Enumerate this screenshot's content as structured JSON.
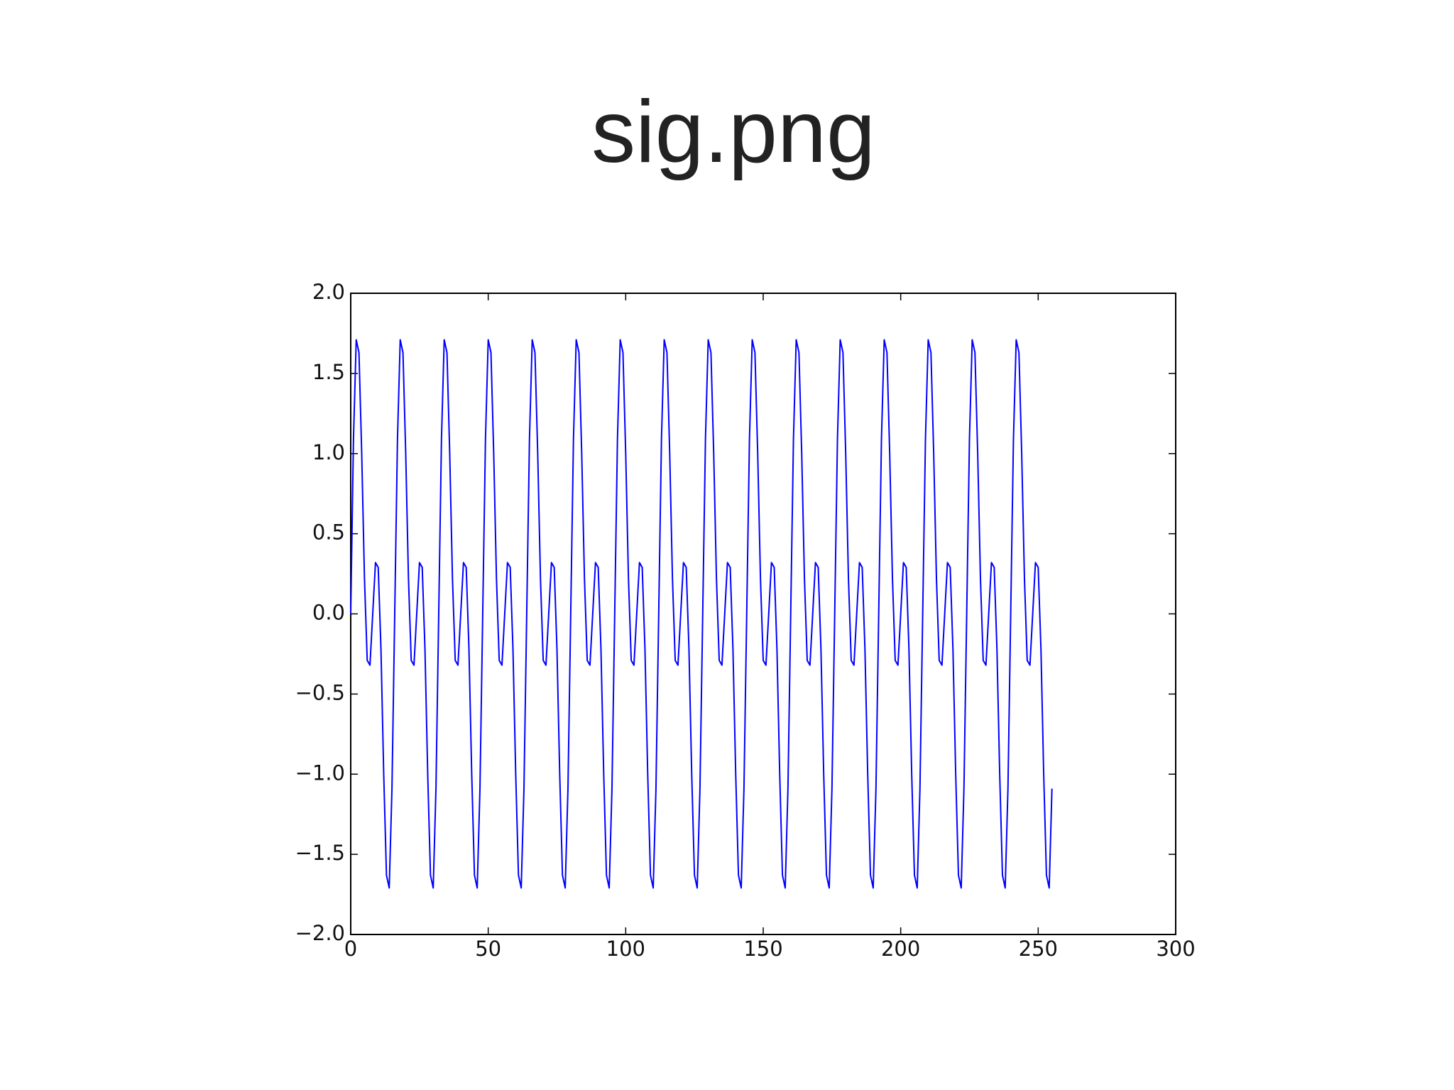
{
  "chart_data": {
    "type": "line",
    "title": "sig.png",
    "color": "#0000ff",
    "x": [
      0,
      1,
      2,
      3,
      4,
      5,
      6,
      7,
      8,
      9,
      10,
      11,
      12,
      13,
      14,
      15,
      16,
      17,
      18,
      19,
      20,
      21,
      22,
      23,
      24,
      25,
      26,
      27,
      28,
      29,
      30,
      31,
      32,
      33,
      34,
      35,
      36,
      37,
      38,
      39,
      40,
      41,
      42,
      43,
      44,
      45,
      46,
      47,
      48,
      49,
      50,
      51,
      52,
      53,
      54,
      55,
      56,
      57,
      58,
      59,
      60,
      61,
      62,
      63,
      64,
      65,
      66,
      67,
      68,
      69,
      70,
      71,
      72,
      73,
      74,
      75,
      76,
      77,
      78,
      79,
      80,
      81,
      82,
      83,
      84,
      85,
      86,
      87,
      88,
      89,
      90,
      91,
      92,
      93,
      94,
      95,
      96,
      97,
      98,
      99,
      100,
      101,
      102,
      103,
      104,
      105,
      106,
      107,
      108,
      109,
      110,
      111,
      112,
      113,
      114,
      115,
      116,
      117,
      118,
      119,
      120,
      121,
      122,
      123,
      124,
      125,
      126,
      127,
      128,
      129,
      130,
      131,
      132,
      133,
      134,
      135,
      136,
      137,
      138,
      139,
      140,
      141,
      142,
      143,
      144,
      145,
      146,
      147,
      148,
      149,
      150,
      151,
      152,
      153,
      154,
      155,
      156,
      157,
      158,
      159,
      160,
      161,
      162,
      163,
      164,
      165,
      166,
      167,
      168,
      169,
      170,
      171,
      172,
      173,
      174,
      175,
      176,
      177,
      178,
      179,
      180,
      181,
      182,
      183,
      184,
      185,
      186,
      187,
      188,
      189,
      190,
      191,
      192,
      193,
      194,
      195,
      196,
      197,
      198,
      199,
      200,
      201,
      202,
      203,
      204,
      205,
      206,
      207,
      208,
      209,
      210,
      211,
      212,
      213,
      214,
      215,
      216,
      217,
      218,
      219,
      220,
      221,
      222,
      223,
      224,
      225,
      226,
      227,
      228,
      229,
      230,
      231,
      232,
      233,
      234,
      235,
      236,
      237,
      238,
      239,
      240,
      241,
      242,
      243,
      244,
      245,
      246,
      247,
      248,
      249,
      250,
      251,
      252,
      253,
      254,
      255
    ],
    "values": [
      0,
      1.09,
      1.71,
      1.63,
      1,
      0.22,
      -0.29,
      -0.32,
      0,
      0.32,
      0.29,
      -0.22,
      -1,
      -1.63,
      -1.71,
      -1.09,
      0,
      1.09,
      1.71,
      1.63,
      1,
      0.22,
      -0.29,
      -0.32,
      0,
      0.32,
      0.29,
      -0.22,
      -1,
      -1.63,
      -1.71,
      -1.09,
      0,
      1.09,
      1.71,
      1.63,
      1,
      0.22,
      -0.29,
      -0.32,
      0,
      0.32,
      0.29,
      -0.22,
      -1,
      -1.63,
      -1.71,
      -1.09,
      0,
      1.09,
      1.71,
      1.63,
      1,
      0.22,
      -0.29,
      -0.32,
      0,
      0.32,
      0.29,
      -0.22,
      -1,
      -1.63,
      -1.71,
      -1.09,
      0,
      1.09,
      1.71,
      1.63,
      1,
      0.22,
      -0.29,
      -0.32,
      0,
      0.32,
      0.29,
      -0.22,
      -1,
      -1.63,
      -1.71,
      -1.09,
      0,
      1.09,
      1.71,
      1.63,
      1,
      0.22,
      -0.29,
      -0.32,
      0,
      0.32,
      0.29,
      -0.22,
      -1,
      -1.63,
      -1.71,
      -1.09,
      0,
      1.09,
      1.71,
      1.63,
      1,
      0.22,
      -0.29,
      -0.32,
      0,
      0.32,
      0.29,
      -0.22,
      -1,
      -1.63,
      -1.71,
      -1.09,
      0,
      1.09,
      1.71,
      1.63,
      1,
      0.22,
      -0.29,
      -0.32,
      0,
      0.32,
      0.29,
      -0.22,
      -1,
      -1.63,
      -1.71,
      -1.09,
      0,
      1.09,
      1.71,
      1.63,
      1,
      0.22,
      -0.29,
      -0.32,
      0,
      0.32,
      0.29,
      -0.22,
      -1,
      -1.63,
      -1.71,
      -1.09,
      0,
      1.09,
      1.71,
      1.63,
      1,
      0.22,
      -0.29,
      -0.32,
      0,
      0.32,
      0.29,
      -0.22,
      -1,
      -1.63,
      -1.71,
      -1.09,
      0,
      1.09,
      1.71,
      1.63,
      1,
      0.22,
      -0.29,
      -0.32,
      0,
      0.32,
      0.29,
      -0.22,
      -1,
      -1.63,
      -1.71,
      -1.09,
      0,
      1.09,
      1.71,
      1.63,
      1,
      0.22,
      -0.29,
      -0.32,
      0,
      0.32,
      0.29,
      -0.22,
      -1,
      -1.63,
      -1.71,
      -1.09,
      0,
      1.09,
      1.71,
      1.63,
      1,
      0.22,
      -0.29,
      -0.32,
      0,
      0.32,
      0.29,
      -0.22,
      -1,
      -1.63,
      -1.71,
      -1.09,
      0,
      1.09,
      1.71,
      1.63,
      1,
      0.22,
      -0.29,
      -0.32,
      0,
      0.32,
      0.29,
      -0.22,
      -1,
      -1.63,
      -1.71,
      -1.09,
      0,
      1.09,
      1.71,
      1.63,
      1,
      0.22,
      -0.29,
      -0.32,
      0,
      0.32,
      0.29,
      -0.22,
      -1,
      -1.63,
      -1.71,
      -1.09,
      0,
      1.09,
      1.71,
      1.63,
      1,
      0.22,
      -0.29,
      -0.32,
      0,
      0.32,
      0.29,
      -0.22,
      -1,
      -1.63,
      -1.71,
      -1.09
    ],
    "xlim": [
      0,
      300
    ],
    "xticks": [
      0,
      50,
      100,
      150,
      200,
      250,
      300
    ],
    "ylim": [
      -2,
      2
    ],
    "yticks": [
      {
        "value": -2,
        "label": "−2.0"
      },
      {
        "value": -1.5,
        "label": "−1.5"
      },
      {
        "value": -1,
        "label": "−1.0"
      },
      {
        "value": -0.5,
        "label": "−0.5"
      },
      {
        "value": 0,
        "label": "0.0"
      },
      {
        "value": 0.5,
        "label": "0.5"
      },
      {
        "value": 1,
        "label": "1.0"
      },
      {
        "value": 1.5,
        "label": "1.5"
      },
      {
        "value": 2,
        "label": "2.0"
      }
    ],
    "grid": false
  }
}
